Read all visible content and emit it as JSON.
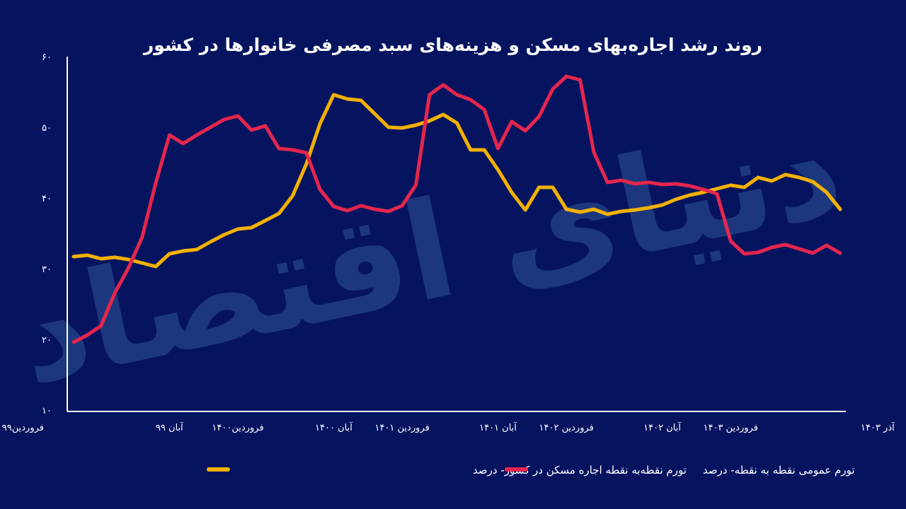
{
  "chart_data": {
    "type": "line",
    "title": "روند رشد اجاره‌بهای مسکن و هزینه‌های سبد مصرفی خانوارها در کشور",
    "watermark": "دنیای اقتصاد",
    "ylim": [
      10,
      60
    ],
    "yticks": [
      "۱۰",
      "۲۰",
      "۳۰",
      "۴۰",
      "۵۰",
      "۶۰"
    ],
    "x_count": 57,
    "x_tick_labels": [
      {
        "index": 0,
        "label": "فروردین۹۹"
      },
      {
        "index": 7,
        "label": "آبان ۹۹"
      },
      {
        "index": 12,
        "label": "فروردین۱۴۰۰"
      },
      {
        "index": 19,
        "label": "آبان ۱۴۰۰"
      },
      {
        "index": 24,
        "label": "فروردین ۱۴۰۱"
      },
      {
        "index": 31,
        "label": "آبان ۱۴۰۱"
      },
      {
        "index": 36,
        "label": "فروردین ۱۴۰۲"
      },
      {
        "index": 43,
        "label": "آبان ۱۴۰۲"
      },
      {
        "index": 48,
        "label": "فروردین ۱۴۰۳"
      },
      {
        "index": 56,
        "label": "آذر ۱۴۰۳"
      }
    ],
    "grid": false,
    "legend_position": "bottom",
    "series": [
      {
        "name": "تورم نقطه‌به نقطه اجاره مسکن در کشور- درصد",
        "color": "#f2b100",
        "values": [
          31.7,
          31.9,
          31.4,
          31.6,
          31.3,
          30.8,
          30.3,
          32.1,
          32.5,
          32.7,
          33.8,
          34.8,
          35.6,
          35.8,
          36.8,
          37.8,
          40.3,
          44.8,
          50.5,
          54.6,
          54.0,
          53.8,
          51.9,
          50.0,
          49.9,
          50.3,
          50.9,
          51.8,
          50.6,
          46.8,
          46.8,
          44.0,
          40.8,
          38.3,
          41.5,
          41.5,
          38.4,
          38.0,
          38.4,
          37.7,
          38.1,
          38.3,
          38.6,
          39.0,
          39.8,
          40.4,
          40.8,
          41.3,
          41.8,
          41.5,
          42.9,
          42.4,
          43.3,
          42.9,
          42.3,
          40.8,
          38.4
        ]
      },
      {
        "name": "تورم عمومی نقطه به نقطه- درصد",
        "color": "#e5264d",
        "values": [
          19.6,
          20.6,
          21.9,
          26.5,
          30.1,
          34.4,
          42.1,
          48.9,
          47.7,
          48.9,
          50.0,
          51.1,
          51.6,
          49.6,
          50.2,
          47.0,
          46.8,
          46.4,
          41.2,
          38.8,
          38.2,
          38.9,
          38.4,
          38.1,
          38.9,
          41.8,
          54.6,
          56.0,
          54.6,
          53.9,
          52.5,
          47.0,
          50.8,
          49.5,
          51.5,
          55.4,
          57.2,
          56.7,
          46.5,
          42.2,
          42.5,
          42.0,
          42.2,
          41.9,
          42.0,
          41.7,
          41.2,
          40.6,
          33.9,
          32.1,
          32.3,
          33.0,
          33.4,
          32.8,
          32.2,
          33.3,
          32.2
        ]
      }
    ]
  }
}
